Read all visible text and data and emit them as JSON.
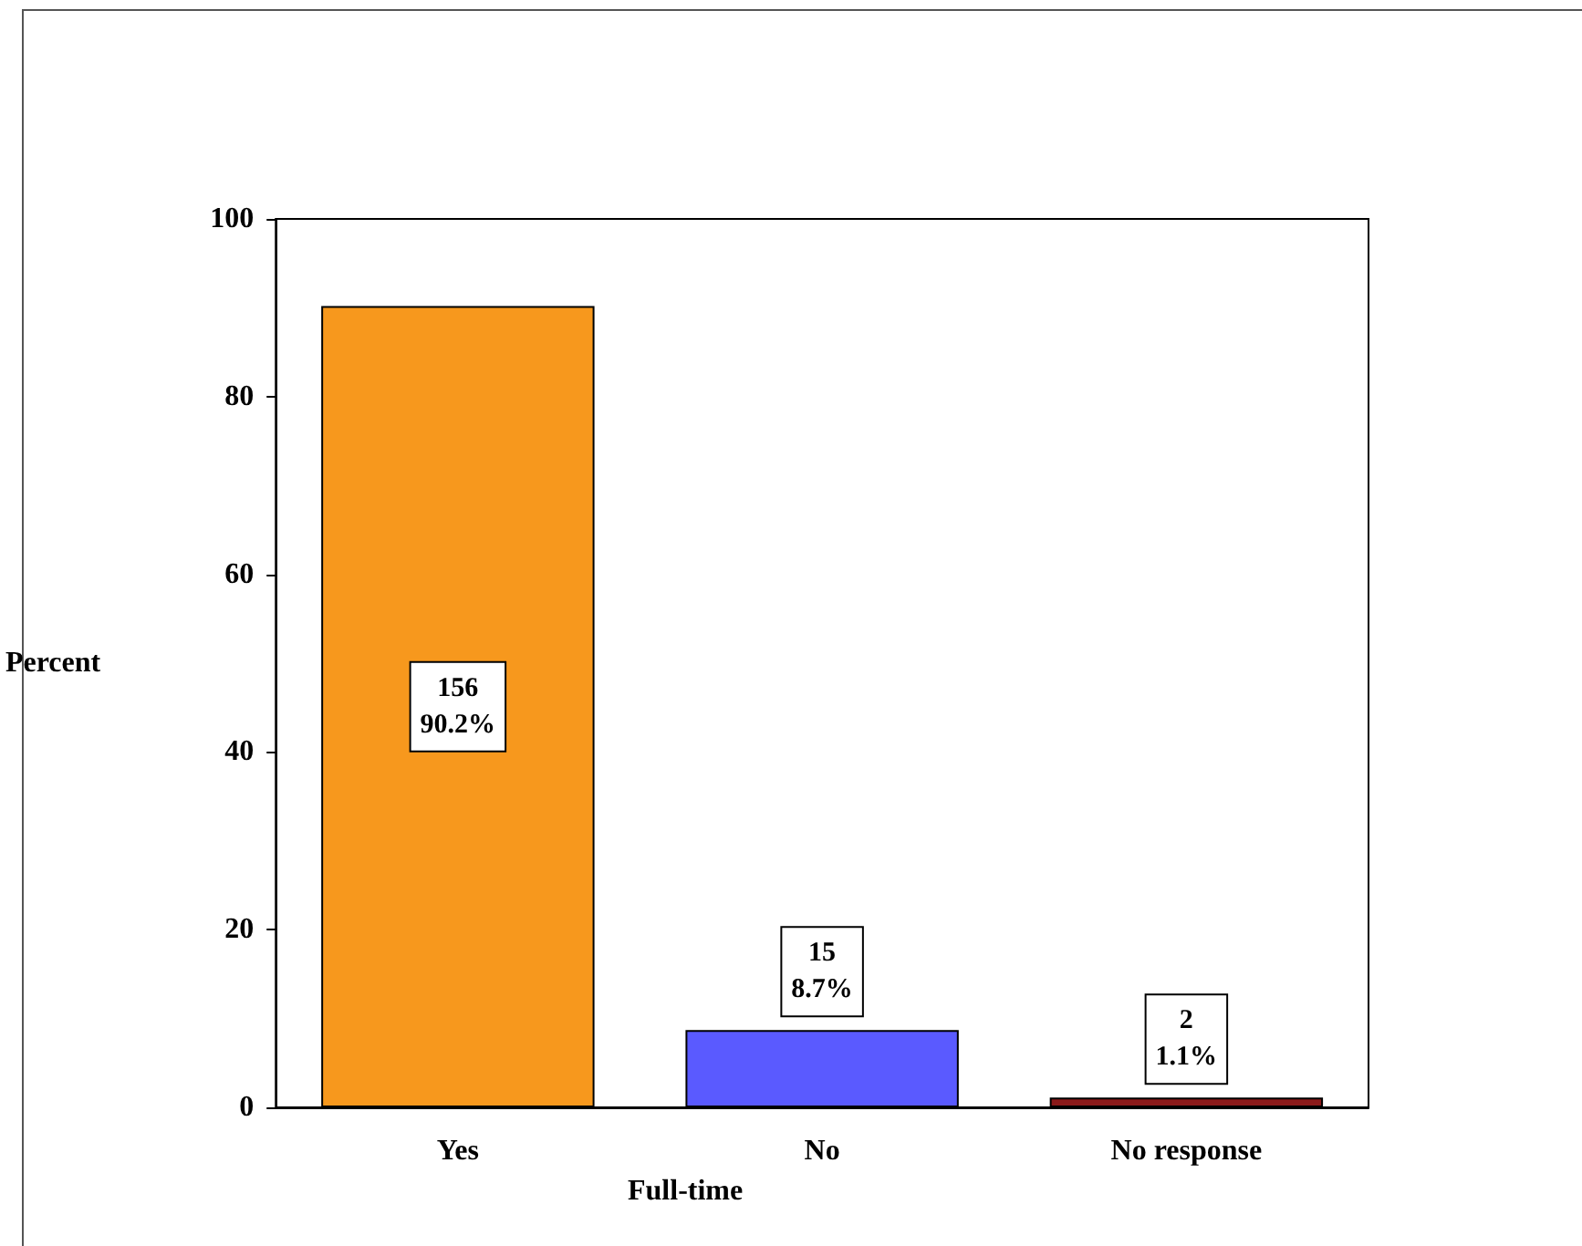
{
  "chart_data": {
    "type": "bar",
    "xlabel": "Full-time",
    "ylabel": "Percent",
    "categories": [
      "Yes",
      "No",
      "No response"
    ],
    "values": [
      90.2,
      8.7,
      1.1
    ],
    "colors": [
      "#f7981d",
      "#5a5aff",
      "#8b1a1a"
    ],
    "value_labels": [
      "156\n90.2%",
      "15\n8.7%",
      "2\n1.1%"
    ],
    "ylim": [
      0,
      100
    ],
    "yticks": [
      0,
      20,
      40,
      60,
      80,
      100
    ],
    "grid": false
  }
}
